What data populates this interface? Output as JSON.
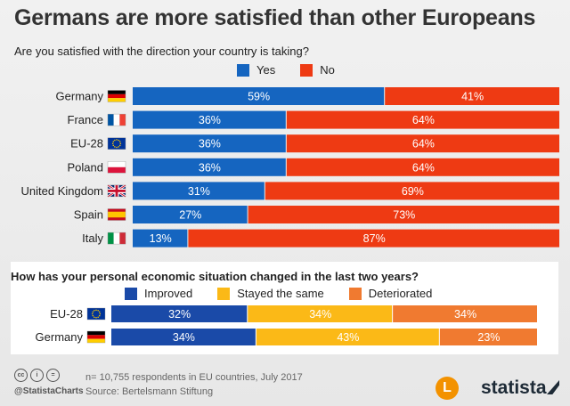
{
  "title": "Germans are more satisfied than other Europeans",
  "colors": {
    "yes": "#1565c0",
    "no": "#ee3a13",
    "improved": "#1a4aa8",
    "same": "#fbb917",
    "deteriorated": "#f07a30"
  },
  "chart_data": [
    {
      "type": "bar",
      "orientation": "horizontal",
      "stacked": true,
      "title": "Are you satisfied with the direction your country is taking?",
      "categories": [
        "Germany",
        "France",
        "EU-28",
        "Poland",
        "United Kingdom",
        "Spain",
        "Italy"
      ],
      "series": [
        {
          "name": "Yes",
          "values": [
            59,
            36,
            36,
            36,
            31,
            27,
            13
          ]
        },
        {
          "name": "No",
          "values": [
            41,
            64,
            64,
            64,
            69,
            73,
            87
          ]
        }
      ],
      "value_suffix": "%",
      "xlim": [
        0,
        100
      ]
    },
    {
      "type": "bar",
      "orientation": "horizontal",
      "stacked": true,
      "title": "How has your personal economic situation changed in the last two years?",
      "categories": [
        "EU-28",
        "Germany"
      ],
      "series": [
        {
          "name": "Improved",
          "values": [
            32,
            34
          ]
        },
        {
          "name": "Stayed the same",
          "values": [
            34,
            43
          ]
        },
        {
          "name": "Deteriorated",
          "values": [
            34,
            23
          ]
        }
      ],
      "value_suffix": "%",
      "xlim": [
        0,
        100
      ]
    }
  ],
  "footer": {
    "note": "n= 10,755 respondents in EU countries, July 2017",
    "source": "Source: Bertelsmann Stiftung",
    "handle": "@StatistaCharts",
    "brand": "statista",
    "cc_icons": [
      "cc",
      "i",
      "="
    ],
    "logo_letter": "L"
  },
  "flags": {
    "Germany": [
      "#000000",
      "#dd0000",
      "#ffce00"
    ],
    "France": [
      "#0055a4",
      "#ffffff",
      "#ef4135"
    ],
    "EU-28": [
      "#003399"
    ],
    "Poland": [
      "#ffffff",
      "#dc143c"
    ],
    "United Kingdom": [
      "#012169"
    ],
    "Spain": [
      "#c60b1e",
      "#ffc400",
      "#c60b1e"
    ],
    "Italy": [
      "#009246",
      "#ffffff",
      "#ce2b37"
    ]
  }
}
